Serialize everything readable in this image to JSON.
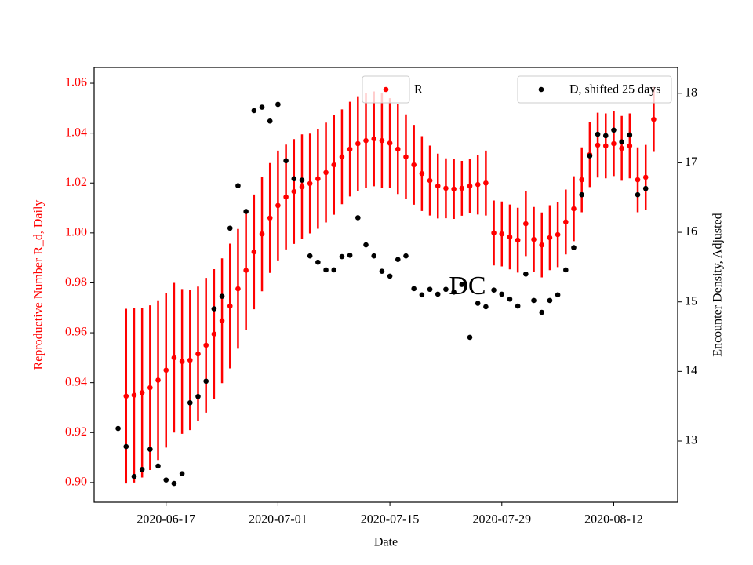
{
  "chart_data": {
    "type": "errorbar_dual",
    "xlabel": "Date",
    "ylabel": "Reproductive Number R_d, Daily",
    "y2label": "Encounter Density, Adjusted",
    "annotation": "DC",
    "x": [
      "2020-06-11",
      "2020-06-12",
      "2020-06-13",
      "2020-06-14",
      "2020-06-15",
      "2020-06-16",
      "2020-06-17",
      "2020-06-18",
      "2020-06-19",
      "2020-06-20",
      "2020-06-21",
      "2020-06-22",
      "2020-06-23",
      "2020-06-24",
      "2020-06-25",
      "2020-06-26",
      "2020-06-27",
      "2020-06-28",
      "2020-06-29",
      "2020-06-30",
      "2020-07-01",
      "2020-07-02",
      "2020-07-03",
      "2020-07-04",
      "2020-07-05",
      "2020-07-06",
      "2020-07-07",
      "2020-07-08",
      "2020-07-09",
      "2020-07-10",
      "2020-07-11",
      "2020-07-12",
      "2020-07-13",
      "2020-07-14",
      "2020-07-15",
      "2020-07-16",
      "2020-07-17",
      "2020-07-18",
      "2020-07-19",
      "2020-07-20",
      "2020-07-21",
      "2020-07-22",
      "2020-07-23",
      "2020-07-24",
      "2020-07-25",
      "2020-07-26",
      "2020-07-27",
      "2020-07-28",
      "2020-07-29",
      "2020-07-30",
      "2020-07-31",
      "2020-08-01",
      "2020-08-02",
      "2020-08-03",
      "2020-08-04",
      "2020-08-05",
      "2020-08-06",
      "2020-08-07",
      "2020-08-08",
      "2020-08-09",
      "2020-08-10",
      "2020-08-11",
      "2020-08-12",
      "2020-08-13",
      "2020-08-14",
      "2020-08-15",
      "2020-08-16",
      "2020-08-17"
    ],
    "xlim": [
      "2020-06-08",
      "2020-08-20"
    ],
    "xticks": [
      "2020-06-17",
      "2020-07-01",
      "2020-07-15",
      "2020-07-29",
      "2020-08-12"
    ],
    "ylim": [
      0.8921,
      1.0663
    ],
    "yticks": [
      {
        "value": 0.9,
        "label": "0.90"
      },
      0.92,
      0.94,
      0.96,
      0.98,
      {
        "value": 1.0,
        "label": "1.00"
      },
      1.02,
      1.04,
      1.06
    ],
    "y2lim": [
      12.12,
      18.37
    ],
    "y2ticks": [
      13,
      14,
      15,
      16,
      17,
      18
    ],
    "series": [
      {
        "name": "R",
        "color": "#ff0000",
        "legend": "upper center",
        "values": [
          null,
          0.9346,
          0.935,
          0.936,
          0.938,
          0.941,
          0.945,
          0.95,
          0.9485,
          0.949,
          0.9515,
          0.955,
          0.9595,
          0.9648,
          0.9707,
          0.9776,
          0.985,
          0.9924,
          0.9996,
          1.006,
          1.011,
          1.0144,
          1.0166,
          1.0185,
          1.0198,
          1.0217,
          1.0242,
          1.0273,
          1.0305,
          1.0336,
          1.0358,
          1.037,
          1.0377,
          1.037,
          1.036,
          1.0336,
          1.0305,
          1.0273,
          1.0238,
          1.021,
          1.0188,
          1.0179,
          1.0176,
          1.0179,
          1.0188,
          1.0194,
          1.02,
          1.0,
          0.9996,
          0.9984,
          0.9971,
          1.0037,
          0.9974,
          0.9952,
          0.9981,
          0.9993,
          1.0044,
          1.0097,
          1.0213,
          1.0314,
          1.0352,
          1.0349,
          1.0358,
          1.0339,
          1.0349,
          1.0213,
          1.0223,
          1.0455
        ],
        "errors": [
          null,
          0.035,
          0.035,
          0.034,
          0.033,
          0.032,
          0.031,
          0.03,
          0.029,
          0.028,
          0.027,
          0.027,
          0.026,
          0.025,
          0.025,
          0.024,
          0.024,
          0.023,
          0.023,
          0.022,
          0.022,
          0.021,
          0.021,
          0.021,
          0.02,
          0.02,
          0.02,
          0.02,
          0.019,
          0.019,
          0.019,
          0.019,
          0.019,
          0.019,
          0.018,
          0.018,
          0.017,
          0.016,
          0.015,
          0.014,
          0.013,
          0.012,
          0.012,
          0.011,
          0.011,
          0.012,
          0.013,
          0.013,
          0.013,
          0.013,
          0.013,
          0.013,
          0.013,
          0.013,
          0.013,
          0.013,
          0.013,
          0.013,
          0.013,
          0.013,
          0.013,
          0.013,
          0.013,
          0.013,
          0.013,
          0.013,
          0.013,
          0.013
        ]
      },
      {
        "name": "D, shifted 25 days",
        "color": "#000000",
        "axis": "y2",
        "legend": "upper right",
        "values": [
          13.18,
          12.92,
          12.49,
          12.59,
          12.88,
          12.64,
          12.44,
          12.39,
          12.53,
          13.55,
          13.64,
          13.86,
          14.9,
          15.08,
          16.06,
          16.67,
          16.3,
          17.75,
          17.8,
          17.6,
          17.84,
          17.03,
          16.77,
          16.75,
          15.66,
          15.57,
          15.46,
          15.46,
          15.65,
          15.67,
          16.21,
          15.82,
          15.66,
          15.44,
          15.37,
          15.61,
          15.66,
          15.19,
          15.1,
          15.18,
          15.11,
          15.18,
          15.14,
          15.25,
          14.49,
          14.98,
          14.93,
          15.17,
          15.11,
          15.04,
          14.94,
          15.4,
          15.02,
          14.85,
          15.02,
          15.1,
          15.46,
          15.78,
          16.54,
          17.1,
          17.41,
          17.39,
          17.47,
          17.3,
          17.4,
          16.54,
          16.63,
          null
        ]
      }
    ]
  }
}
